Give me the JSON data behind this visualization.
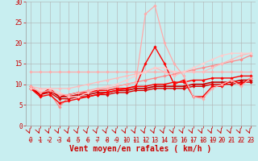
{
  "background_color": "#c8eef0",
  "grid_color": "#b0b0b0",
  "xlabel": "Vent moyen/en rafales ( km/h )",
  "xlabel_color": "#cc0000",
  "xlabel_fontsize": 7,
  "xlim": [
    -0.5,
    23.5
  ],
  "ylim": [
    0,
    30
  ],
  "yticks": [
    0,
    5,
    10,
    15,
    20,
    25,
    30
  ],
  "xticks": [
    0,
    1,
    2,
    3,
    4,
    5,
    6,
    7,
    8,
    9,
    10,
    11,
    12,
    13,
    14,
    15,
    16,
    17,
    18,
    19,
    20,
    21,
    22,
    23
  ],
  "tick_fontsize": 5.5,
  "lines": [
    {
      "x": [
        0,
        1,
        2,
        3,
        4,
        5,
        6,
        7,
        8,
        9,
        10,
        11,
        12,
        13,
        14,
        15,
        16,
        17,
        18,
        19,
        20,
        21,
        22,
        23
      ],
      "y": [
        13,
        13,
        13,
        13,
        13,
        13,
        13,
        13,
        13,
        13,
        13,
        13,
        13,
        13,
        13,
        13,
        13,
        13,
        13,
        13,
        13,
        13,
        13,
        13
      ],
      "color": "#ffaaaa",
      "lw": 0.9,
      "marker": "D",
      "ms": 1.8
    },
    {
      "x": [
        0,
        1,
        2,
        3,
        4,
        5,
        6,
        7,
        8,
        9,
        10,
        11,
        12,
        13,
        14,
        15,
        16,
        17,
        18,
        19,
        20,
        21,
        22,
        23
      ],
      "y": [
        9.5,
        8,
        8,
        4.5,
        7,
        7.5,
        8,
        8.5,
        9,
        9.5,
        10,
        10.5,
        11,
        11.5,
        12,
        12.5,
        13,
        13.5,
        14,
        14.5,
        15,
        15.5,
        16,
        17
      ],
      "color": "#ff8888",
      "lw": 0.9,
      "marker": "D",
      "ms": 1.8
    },
    {
      "x": [
        0,
        1,
        2,
        3,
        4,
        5,
        6,
        7,
        8,
        9,
        10,
        11,
        12,
        13,
        14,
        15,
        16,
        17,
        18,
        19,
        20,
        21,
        22,
        23
      ],
      "y": [
        9.5,
        7.5,
        9,
        7,
        7.5,
        8,
        8,
        8.5,
        8.5,
        9,
        9,
        9.5,
        9.5,
        10,
        10,
        10.5,
        10.5,
        11,
        11,
        11.5,
        11.5,
        11.5,
        12,
        12
      ],
      "color": "#ff0000",
      "lw": 1.0,
      "marker": "D",
      "ms": 1.8
    },
    {
      "x": [
        0,
        1,
        2,
        3,
        4,
        5,
        6,
        7,
        8,
        9,
        10,
        11,
        12,
        13,
        14,
        15,
        16,
        17,
        18,
        19,
        20,
        21,
        22,
        23
      ],
      "y": [
        9,
        7.5,
        8.5,
        7,
        7,
        7.5,
        7.5,
        8,
        8,
        8.5,
        8.5,
        9,
        9,
        9.5,
        9.5,
        9.5,
        9.5,
        10,
        10,
        10.5,
        10.5,
        10.5,
        11,
        11
      ],
      "color": "#cc0000",
      "lw": 1.2,
      "marker": "D",
      "ms": 1.8
    },
    {
      "x": [
        0,
        1,
        2,
        3,
        4,
        5,
        6,
        7,
        8,
        9,
        10,
        11,
        12,
        13,
        14,
        15,
        16,
        17,
        18,
        19,
        20,
        21,
        22,
        23
      ],
      "y": [
        9,
        7.5,
        8,
        6.5,
        6.5,
        7,
        7,
        7.5,
        7.5,
        8,
        8,
        8.5,
        8.5,
        9,
        9,
        9,
        9,
        9.5,
        9.5,
        10,
        10,
        10,
        10.5,
        10.5
      ],
      "color": "#dd0000",
      "lw": 1.0,
      "marker": "D",
      "ms": 1.8
    },
    {
      "x": [
        0,
        1,
        2,
        3,
        4,
        5,
        6,
        7,
        8,
        9,
        10,
        11,
        12,
        13,
        14,
        15,
        16,
        17,
        18,
        19,
        20,
        21,
        22,
        23
      ],
      "y": [
        9,
        7,
        7.5,
        5.5,
        6,
        6.5,
        7,
        7.5,
        8,
        8.5,
        9,
        9.5,
        15,
        19,
        15,
        10,
        11,
        7,
        7,
        9.5,
        9.5,
        11,
        10,
        11.5
      ],
      "color": "#ff0000",
      "lw": 1.0,
      "marker": "D",
      "ms": 1.8
    },
    {
      "x": [
        0,
        1,
        2,
        3,
        4,
        5,
        6,
        7,
        8,
        9,
        10,
        11,
        12,
        13,
        14,
        15,
        16,
        17,
        18,
        19,
        20,
        21,
        22,
        23
      ],
      "y": [
        9.5,
        9,
        9,
        9,
        9,
        9.5,
        10,
        10.5,
        11,
        11.5,
        12,
        12.5,
        13,
        14,
        13,
        12,
        13,
        13,
        13,
        14,
        15,
        16,
        17,
        17.5
      ],
      "color": "#ffbbbb",
      "lw": 0.9,
      "marker": "D",
      "ms": 1.8
    },
    {
      "x": [
        0,
        1,
        2,
        3,
        4,
        5,
        6,
        7,
        8,
        9,
        10,
        11,
        12,
        13,
        14,
        15,
        16,
        17,
        18,
        19,
        20,
        21,
        22,
        23
      ],
      "y": [
        9,
        8.5,
        9,
        8,
        7,
        7,
        8,
        9,
        9.5,
        10,
        11,
        12,
        13,
        14,
        14,
        13,
        13,
        14,
        15,
        16,
        17,
        17.5,
        17.5,
        17.5
      ],
      "color": "#ffcccc",
      "lw": 0.9,
      "marker": "D",
      "ms": 1.8
    },
    {
      "x": [
        0,
        1,
        2,
        3,
        4,
        5,
        6,
        7,
        8,
        9,
        10,
        11,
        12,
        13,
        14,
        15,
        16,
        17,
        18,
        19,
        20,
        21,
        22,
        23
      ],
      "y": [
        9.5,
        8,
        8.5,
        7.5,
        7.5,
        8,
        8.5,
        9,
        9,
        9.5,
        10,
        10.5,
        27,
        29,
        20,
        15,
        12,
        7,
        6.5,
        9,
        10,
        11,
        9.5,
        11.5
      ],
      "color": "#ffaaaa",
      "lw": 0.9,
      "marker": "D",
      "ms": 1.8
    }
  ],
  "arrow_color": "#cc0000",
  "arrow_fontsize": 4.5
}
